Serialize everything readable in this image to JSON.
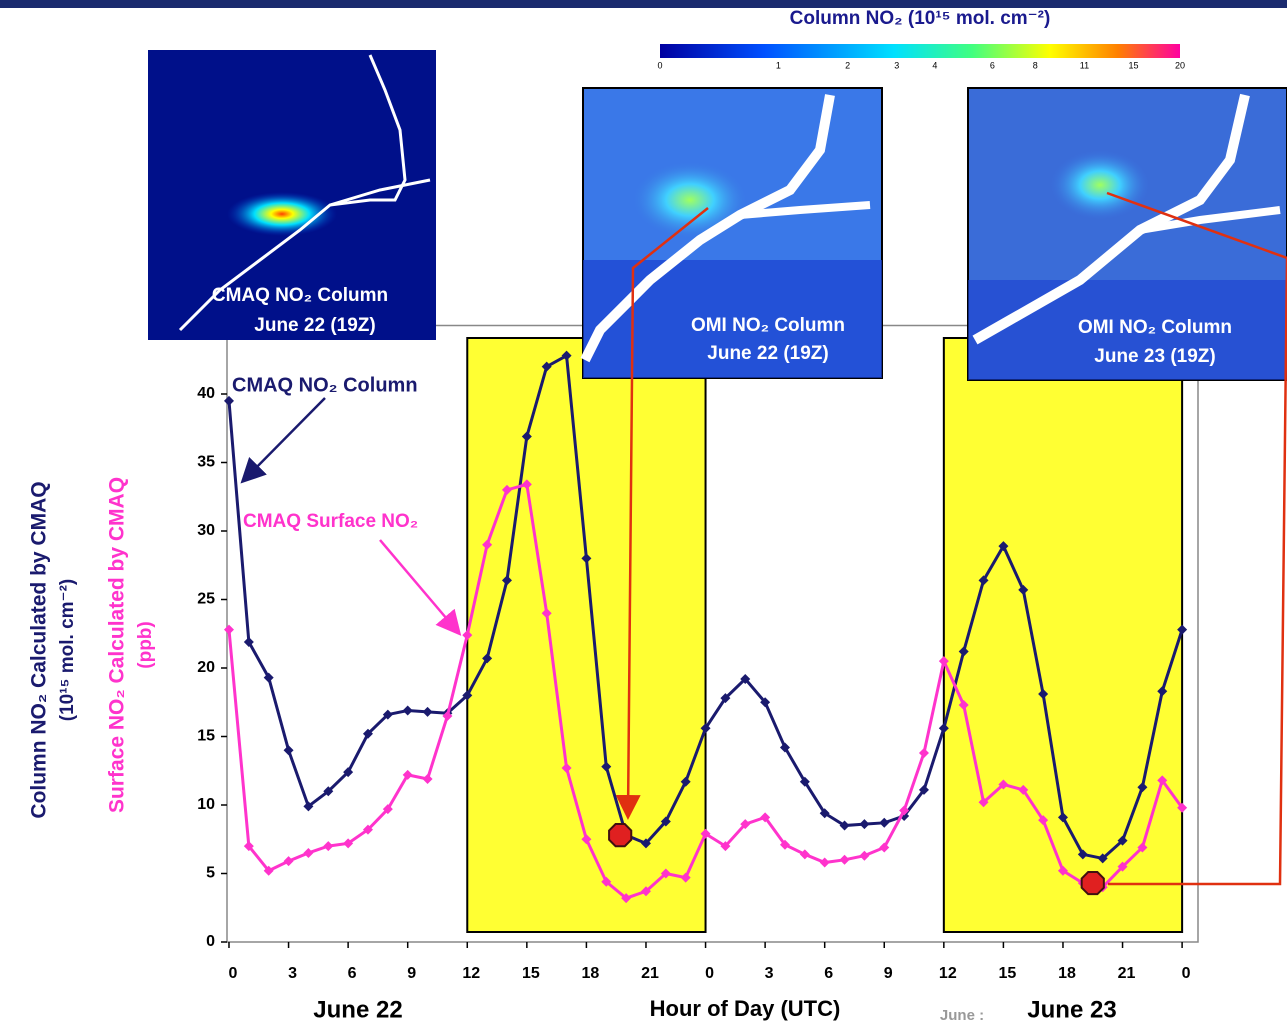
{
  "chart_data": {
    "type": "line",
    "x_label": "Hour of Day (UTC)",
    "y_label_lines": [
      "Column NO₂ Calculated by CMAQ",
      "(10¹⁵ mol. cm⁻²)",
      "Surface NO₂ Calculated by CMAQ",
      "(ppb)"
    ],
    "date_labels": [
      "June 22",
      "June 23"
    ],
    "faint_label": "June :",
    "x": [
      0,
      1,
      2,
      3,
      4,
      5,
      6,
      7,
      8,
      9,
      10,
      11,
      12,
      13,
      14,
      15,
      16,
      17,
      18,
      19,
      20,
      21,
      22,
      23,
      24,
      25,
      26,
      27,
      28,
      29,
      30,
      31,
      32,
      33,
      34,
      35,
      36,
      37,
      38,
      39,
      40,
      41,
      42,
      43,
      44,
      45,
      46,
      47,
      48
    ],
    "series": [
      {
        "name": "CMAQ  NO₂ Column",
        "color": "#1a1a6e",
        "values": [
          39.5,
          21.9,
          19.3,
          14.0,
          9.9,
          11.0,
          12.4,
          15.2,
          16.6,
          16.9,
          16.8,
          16.7,
          18.0,
          20.7,
          26.4,
          36.9,
          42.0,
          42.8,
          28.0,
          12.8,
          7.8,
          7.2,
          8.8,
          11.7,
          15.6,
          17.8,
          19.2,
          17.5,
          14.2,
          11.7,
          9.4,
          8.5,
          8.6,
          8.7,
          9.2,
          11.1,
          15.6,
          21.2,
          26.4,
          28.9,
          25.7,
          18.1,
          9.1,
          6.4,
          6.1,
          7.4,
          11.3,
          18.3,
          22.8
        ]
      },
      {
        "name": "CMAQ Surface NO₂",
        "color": "#ff33cc",
        "values": [
          22.8,
          7.0,
          5.2,
          5.9,
          6.5,
          7.0,
          7.2,
          8.2,
          9.7,
          12.2,
          11.9,
          16.5,
          22.4,
          29.0,
          33.0,
          33.4,
          24.0,
          12.7,
          7.5,
          4.4,
          3.2,
          3.7,
          5.0,
          4.7,
          7.9,
          7.0,
          8.6,
          9.1,
          7.1,
          6.4,
          5.8,
          6.0,
          6.3,
          6.9,
          9.6,
          13.8,
          20.5,
          17.3,
          10.2,
          11.5,
          11.1,
          8.9,
          5.2,
          4.3,
          4.0,
          5.5,
          6.9,
          11.8,
          9.8
        ]
      }
    ],
    "shaded_spans": [
      [
        12,
        24
      ],
      [
        36,
        48
      ]
    ],
    "shade_color": "#ffff33",
    "overpass_points": {
      "x": [
        19.7,
        43.5
      ],
      "y": [
        7.8,
        4.3
      ]
    },
    "xlim": [
      -0.1,
      48.8
    ],
    "ylim": [
      0,
      45
    ],
    "xticks": [
      0,
      3,
      6,
      9,
      12,
      15,
      18,
      21,
      {
        "value": 24,
        "label": "0"
      },
      {
        "value": 27,
        "label": "3"
      },
      {
        "value": 30,
        "label": "6"
      },
      {
        "value": 33,
        "label": "9"
      },
      {
        "value": 36,
        "label": "12"
      },
      {
        "value": 39,
        "label": "15"
      },
      {
        "value": 42,
        "label": "18"
      },
      {
        "value": 45,
        "label": "21"
      },
      {
        "value": 48,
        "label": "0"
      }
    ],
    "yticks": [
      0,
      5,
      10,
      15,
      20,
      25,
      30,
      35,
      40
    ],
    "colorbar": {
      "title": "Column NO₂ (10¹⁵ mol. cm⁻²)",
      "ticks": [
        0,
        1,
        2,
        3,
        4,
        6,
        8,
        11,
        15,
        20
      ]
    },
    "insets": [
      {
        "caption": [
          "CMAQ NO₂ Column",
          "June 22 (19Z)"
        ]
      },
      {
        "caption": [
          "OMI NO₂ Column",
          "June  22 (19Z)"
        ]
      },
      {
        "caption": [
          "OMI NO₂ Column",
          "June 23 (19Z)"
        ]
      }
    ]
  }
}
